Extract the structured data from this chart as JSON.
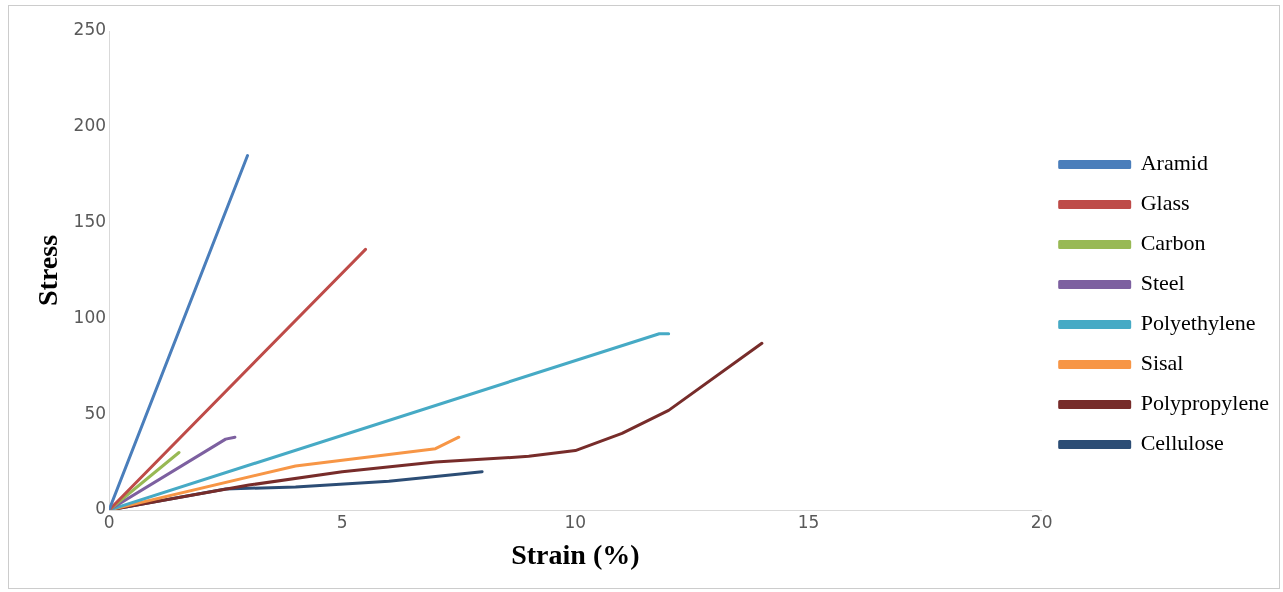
{
  "chart_data": {
    "type": "line",
    "xlabel": "Strain (%)",
    "ylabel": "Stress",
    "xlim": [
      0,
      20
    ],
    "xticks": [
      0,
      5,
      10,
      15,
      20
    ],
    "ylim": [
      0,
      250
    ],
    "yticks": [
      0,
      50,
      100,
      150,
      200,
      250
    ],
    "grid": false,
    "legend": "right",
    "marker": "none",
    "line_style": "solid",
    "series": [
      {
        "name": "Aramid",
        "color": "#4a7ebb",
        "x": [
          0,
          2.97
        ],
        "values": [
          0,
          185
        ]
      },
      {
        "name": "Glass",
        "color": "#be4b48",
        "x": [
          0,
          5.5
        ],
        "values": [
          0,
          136
        ]
      },
      {
        "name": "Carbon",
        "color": "#98b954",
        "x": [
          0,
          1.5
        ],
        "values": [
          0,
          30
        ]
      },
      {
        "name": "Steel",
        "color": "#7d60a0",
        "x": [
          0,
          2.5,
          2.7
        ],
        "values": [
          0,
          37,
          38
        ]
      },
      {
        "name": "Polyethylene",
        "color": "#46aac5",
        "x": [
          0,
          11.8,
          12
        ],
        "values": [
          0,
          92,
          92
        ]
      },
      {
        "name": "Sisal",
        "color": "#f79646",
        "x": [
          0,
          4,
          7,
          7.5
        ],
        "values": [
          0,
          23,
          32,
          38
        ]
      },
      {
        "name": "Polypropylene",
        "color": "#772c2a",
        "x": [
          0,
          3,
          5,
          7,
          9,
          10,
          11,
          12,
          14
        ],
        "values": [
          0,
          13,
          20,
          25,
          28,
          31,
          40,
          52,
          87
        ]
      },
      {
        "name": "Cellulose",
        "color": "#2c4d75",
        "x": [
          0,
          2.5,
          4,
          6,
          8
        ],
        "values": [
          0,
          11,
          12,
          15,
          20
        ]
      }
    ]
  }
}
